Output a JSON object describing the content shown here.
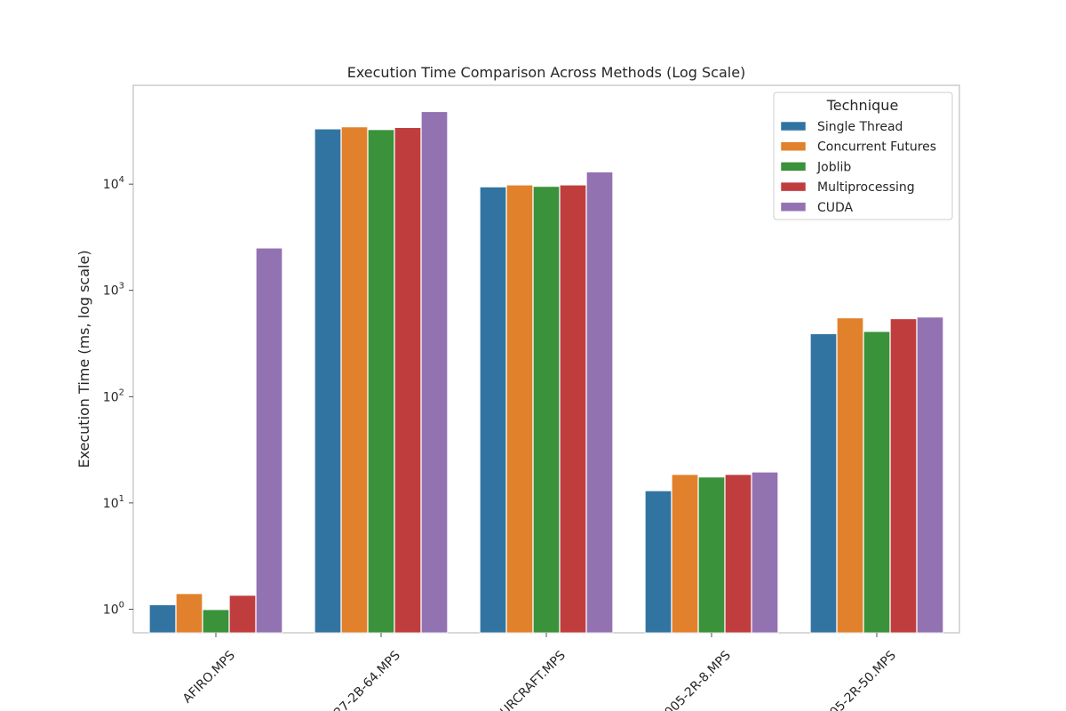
{
  "chart_data": {
    "type": "bar",
    "title": "Execution Time Comparison Across Methods (Log Scale)",
    "ylabel": "Execution Time (ms, log scale)",
    "xlabel": "",
    "yscale": "log",
    "ylim": [
      0.6,
      85000
    ],
    "y_ticks": [
      1,
      10,
      100,
      1000,
      10000
    ],
    "y_tick_labels": [
      {
        "base": "10",
        "exp": "0"
      },
      {
        "base": "10",
        "exp": "1"
      },
      {
        "base": "10",
        "exp": "2"
      },
      {
        "base": "10",
        "exp": "3"
      },
      {
        "base": "10",
        "exp": "4"
      }
    ],
    "categories": [
      "AFIRO.MPS",
      "27-2B-64.MPS",
      "URCRAFT.MPS",
      "005-2R-8.MPS",
      "05-2R-50.MPS"
    ],
    "series": [
      {
        "name": "Single Thread",
        "color": "#3274a1",
        "values": [
          1.1,
          33000,
          9400,
          13,
          390
        ]
      },
      {
        "name": "Concurrent Futures",
        "color": "#e1812c",
        "values": [
          1.4,
          34500,
          9800,
          18.5,
          550
        ]
      },
      {
        "name": "Joblib",
        "color": "#3a923a",
        "values": [
          0.99,
          32500,
          9500,
          17.5,
          410
        ]
      },
      {
        "name": "Multiprocessing",
        "color": "#c03d3e",
        "values": [
          1.35,
          34000,
          9800,
          18.5,
          540
        ]
      },
      {
        "name": "CUDA",
        "color": "#9372b2",
        "values": [
          2500,
          48000,
          13000,
          19.5,
          560
        ]
      }
    ],
    "legend": {
      "title": "Technique",
      "placement": "top-right"
    },
    "grid": false
  }
}
